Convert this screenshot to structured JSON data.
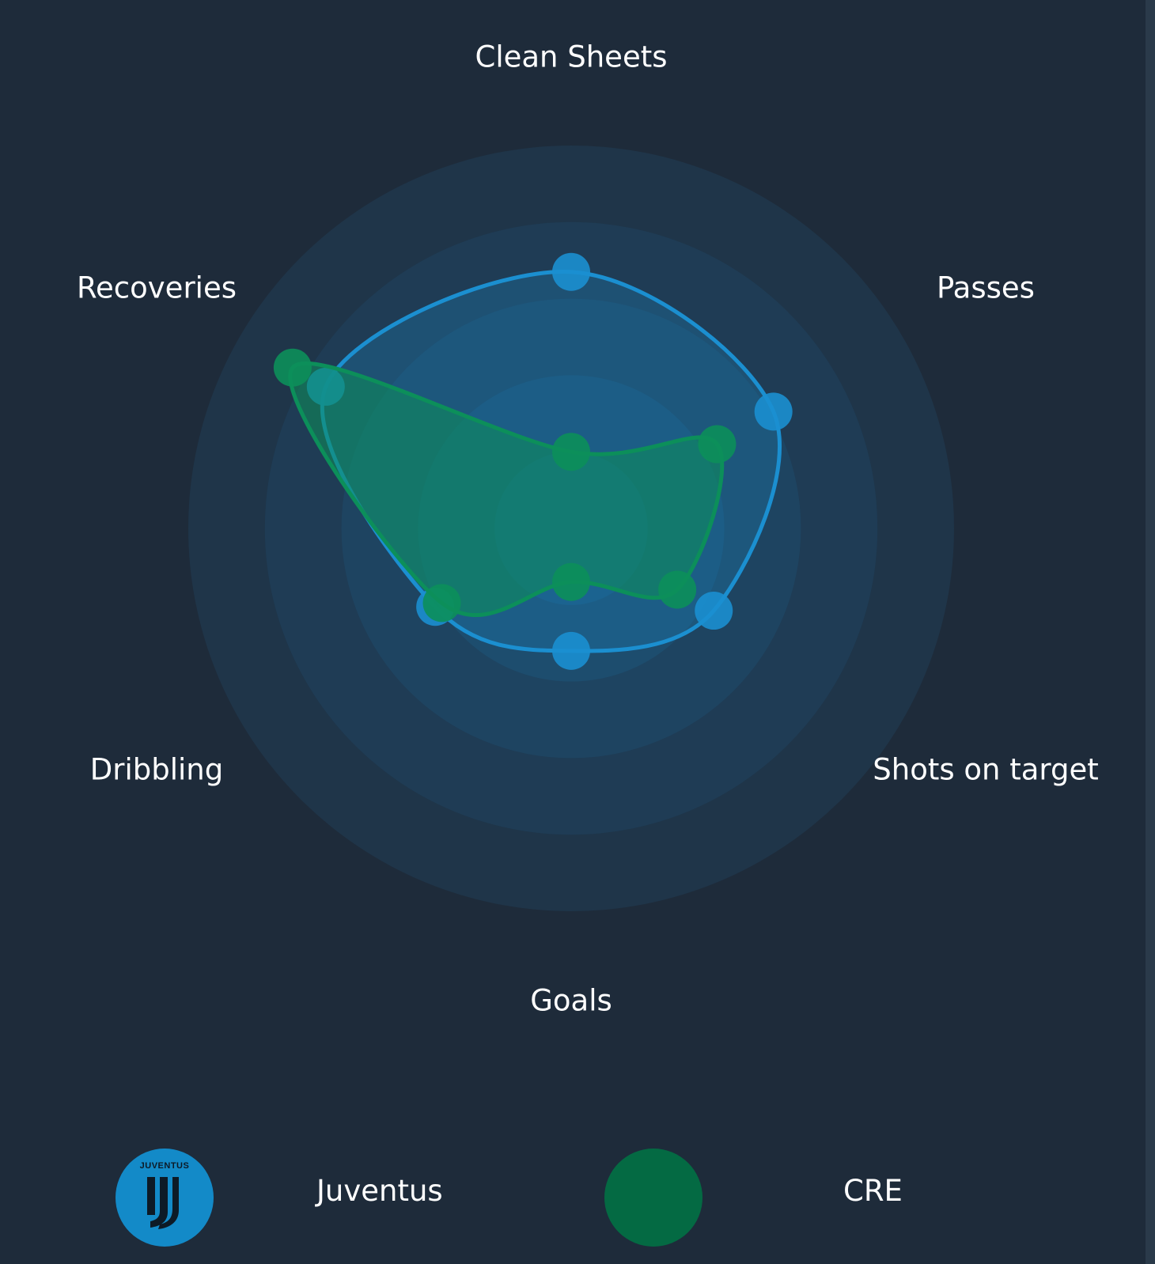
{
  "chart_data": {
    "type": "radar",
    "axes": [
      "Clean Sheets",
      "Passes",
      "Shots on target",
      "Goals",
      "Dribbling",
      "Recoveries"
    ],
    "rings": 5,
    "series": [
      {
        "name": "Juventus",
        "color": "#1b8fd0",
        "logo_text": "JUVENTUS",
        "logo_icon": "juventus-crest-icon",
        "values": [
          0.67,
          0.61,
          0.43,
          0.32,
          0.41,
          0.74
        ]
      },
      {
        "name": "CRE",
        "color": "#0c8f5a",
        "swatch_color": "#046a43",
        "values": [
          0.2,
          0.44,
          0.32,
          0.14,
          0.39,
          0.84
        ]
      }
    ]
  }
}
